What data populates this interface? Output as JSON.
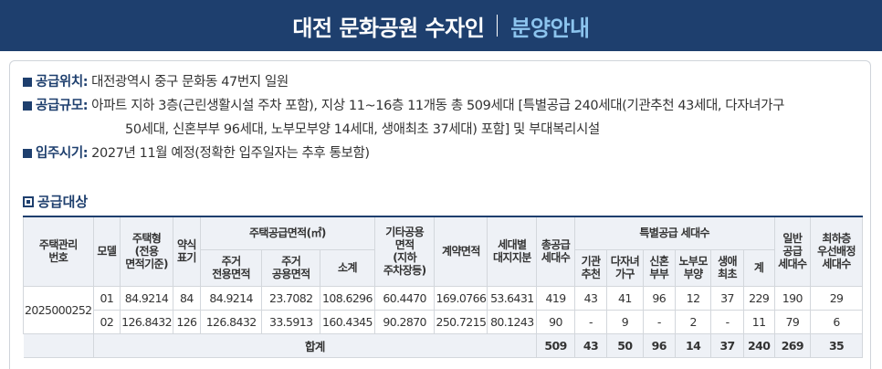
{
  "banner": {
    "title": "대전 문화공원 수자인",
    "subtitle": "분양안내"
  },
  "info": {
    "location": {
      "label": "공급위치",
      "value": "대전광역시 중구 문화동 47번지 일원"
    },
    "scale": {
      "label": "공급규모",
      "value": "아파트 지하 3층(근린생활시설 주차 포함), 지상 11~16층 11개동 총 509세대 [특별공급 240세대(기관추천 43세대, 다자녀가구",
      "value_cont": "50세대, 신혼부부 96세대, 노부모부양 14세대, 생애최초 37세대) 포함] 및 부대복리시설"
    },
    "move_in": {
      "label": "입주시기",
      "value": "2027년 11월 예정(정확한 입주일자는 추후 통보함)"
    }
  },
  "section_title": "공급대상",
  "table": {
    "headers": {
      "mgmt_no": "주택관리\n번호",
      "model": "모델",
      "type": "주택형\n(전용\n면적기준)",
      "short": "약식\n표기",
      "supply_area": "주택공급면적(㎡)",
      "private": "주거\n전용면적",
      "common": "주거\n공용면적",
      "subtotal": "소계",
      "other_common": "기타공용\n면적\n(지하\n주차장등)",
      "contract_area": "계약면적",
      "land_share": "세대별\n대지지분",
      "total_units": "총공급\n세대수",
      "special": "특별공급 세대수",
      "sp_inst": "기관\n추천",
      "sp_multi": "다자녀\n가구",
      "sp_newlywed": "신혼\n부부",
      "sp_elderly": "노부모\n부양",
      "sp_first": "생애\n최초",
      "sp_sum": "계",
      "general": "일반\n공급\n세대수",
      "lowest": "최하층\n우선배정\n세대수"
    },
    "mgmt_no_value": "2025000252",
    "rows": [
      [
        "01",
        "84.9214",
        "84",
        "84.9214",
        "23.7082",
        "108.6296",
        "60.4470",
        "169.0766",
        "53.6431",
        "419",
        "43",
        "41",
        "96",
        "12",
        "37",
        "229",
        "190",
        "29"
      ],
      [
        "02",
        "126.8432",
        "126",
        "126.8432",
        "33.5913",
        "160.4345",
        "90.2870",
        "250.7215",
        "80.1243",
        "90",
        "-",
        "9",
        "-",
        "2",
        "-",
        "11",
        "79",
        "6"
      ]
    ],
    "total": {
      "label": "합계",
      "values": [
        "509",
        "43",
        "50",
        "96",
        "14",
        "37",
        "240",
        "269",
        "35"
      ]
    }
  }
}
